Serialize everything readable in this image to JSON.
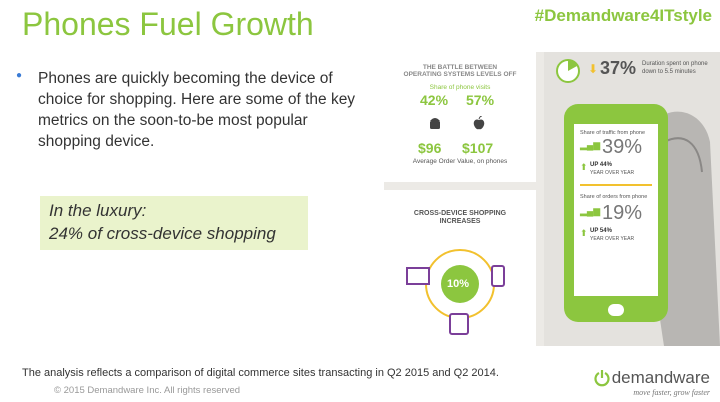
{
  "slide": {
    "title": "Phones Fuel Growth",
    "hashtag": "#Demandware4ITstyle",
    "bullet_text": "Phones are quickly becoming the device of choice for shopping. Here are some of the key metrics on the soon-to-be most popular shopping device.",
    "callout_line1": "In the luxury:",
    "callout_line2": "24% of cross-device shopping",
    "footnote": "The analysis reflects a comparison of digital commerce sites transacting in Q2 2015 and Q2 2014.",
    "copyright": "© 2015 Demandware Inc. All rights reserved"
  },
  "infographic": {
    "battle_title_1": "THE BATTLE BETWEEN",
    "battle_title_2": "OPERATING SYSTEMS LEVELS OFF",
    "share_visits_label": "Share of phone visits",
    "android_share": "42%",
    "ios_share": "57%",
    "android_aov": "$96",
    "ios_aov": "$107",
    "aov_label": "Average Order Value, on phones",
    "cross_title_1": "CROSS-DEVICE SHOPPING",
    "cross_title_2": "INCREASES",
    "cross_value": "10%",
    "duration_value": "37%",
    "duration_label_1": "Duration spent on phone",
    "duration_label_2": "down to 5.5 minutes",
    "traffic_label": "Share of traffic from phone",
    "traffic_value": "39%",
    "traffic_up": "UP 44%",
    "traffic_yoy": "YEAR OVER YEAR",
    "orders_label": "Share of orders from phone",
    "orders_value": "19%",
    "orders_up": "UP 54%",
    "orders_yoy": "YEAR OVER YEAR"
  },
  "logo": {
    "name": "demandware",
    "tagline": "move faster, grow faster"
  },
  "colors": {
    "accent": "#8cc63f",
    "purple": "#7b3f99",
    "yellow": "#f2c12e"
  }
}
